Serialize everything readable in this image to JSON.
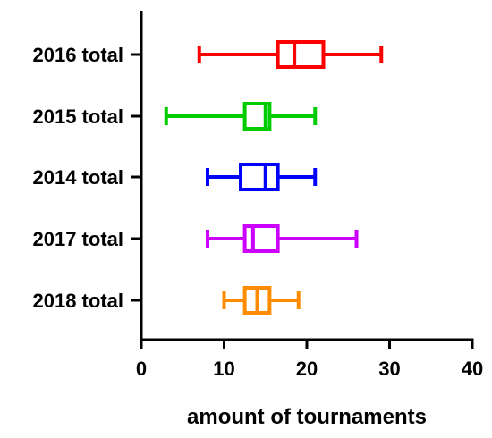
{
  "chart_data": {
    "type": "boxplot",
    "orientation": "horizontal",
    "title": "",
    "xlabel": "amount of tournaments",
    "ylabel": "",
    "xlim": [
      0,
      40
    ],
    "xticks": [
      0,
      10,
      20,
      30,
      40
    ],
    "grid": false,
    "categories": [
      "2016 total",
      "2015 total",
      "2014 total",
      "2017 total",
      "2018 total"
    ],
    "series": [
      {
        "category": "2016 total",
        "color": "#ff0000",
        "min": 7,
        "q1": 16.5,
        "median": 18.5,
        "q3": 22,
        "max": 29
      },
      {
        "category": "2015 total",
        "color": "#00cc00",
        "min": 3,
        "q1": 12.5,
        "median": 15,
        "q3": 15.5,
        "max": 21
      },
      {
        "category": "2014 total",
        "color": "#0000ff",
        "min": 8,
        "q1": 12,
        "median": 15,
        "q3": 16.5,
        "max": 21
      },
      {
        "category": "2017 total",
        "color": "#cc00ff",
        "min": 8,
        "q1": 12.5,
        "median": 13.5,
        "q3": 16.5,
        "max": 26
      },
      {
        "category": "2018 total",
        "color": "#ff8c00",
        "min": 10,
        "q1": 12.5,
        "median": 14,
        "q3": 15.5,
        "max": 19
      }
    ]
  }
}
